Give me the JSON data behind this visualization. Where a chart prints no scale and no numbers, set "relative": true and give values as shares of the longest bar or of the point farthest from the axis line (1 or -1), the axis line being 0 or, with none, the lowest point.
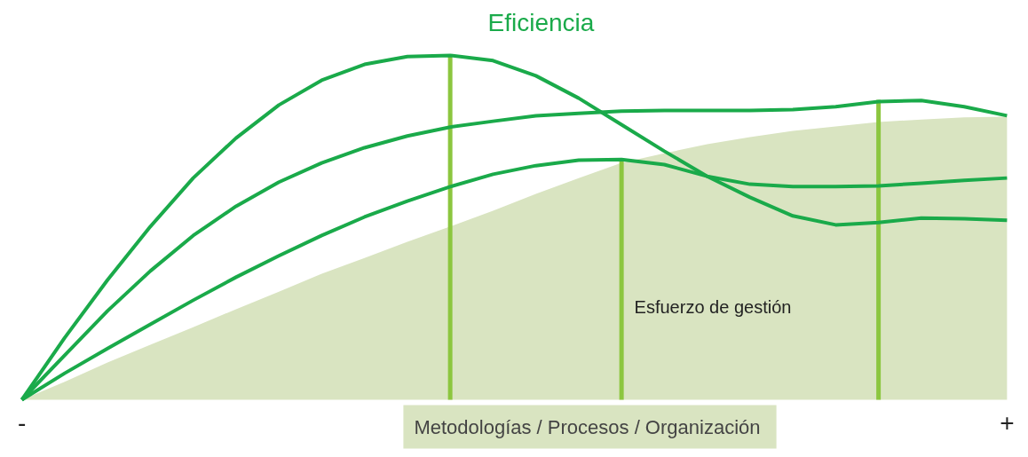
{
  "chart_data": {
    "type": "line",
    "title": "Eficiencia",
    "xlabel": "Metodologías / Procesos  / Organización",
    "relative": true,
    "grid": false,
    "marker": "none",
    "line_style": "solid",
    "categories": [
      "-",
      null,
      null,
      null,
      null,
      null,
      null,
      null,
      null,
      null,
      null,
      null,
      null,
      null,
      null,
      null,
      null,
      null,
      null,
      null,
      null,
      null,
      null,
      "+"
    ],
    "series": [
      {
        "type": "area",
        "name": "Esfuerzo de gestión",
        "color": "#d9e4c1",
        "values": [
          0,
          0.052,
          0.108,
          0.16,
          0.211,
          0.263,
          0.314,
          0.366,
          0.412,
          0.459,
          0.503,
          0.549,
          0.598,
          0.644,
          0.688,
          0.716,
          0.742,
          0.763,
          0.781,
          0.794,
          0.807,
          0.814,
          0.82,
          0.822
        ]
      },
      {
        "type": "bar",
        "color": "#8cc63f",
        "values": [
          null,
          null,
          null,
          null,
          null,
          null,
          null,
          null,
          null,
          null,
          1.0,
          null,
          null,
          null,
          0.696,
          null,
          null,
          null,
          null,
          null,
          0.871,
          null,
          null,
          null
        ]
      },
      {
        "color": "#1aaa4a",
        "values": [
          0,
          0.18,
          0.348,
          0.503,
          0.644,
          0.76,
          0.856,
          0.928,
          0.974,
          0.997,
          1.0,
          0.985,
          0.941,
          0.876,
          0.799,
          0.722,
          0.649,
          0.588,
          0.534,
          0.508,
          0.515,
          0.528,
          0.526,
          0.521
        ]
      },
      {
        "color": "#1aaa4a",
        "values": [
          0,
          0.129,
          0.258,
          0.374,
          0.477,
          0.562,
          0.632,
          0.688,
          0.732,
          0.766,
          0.792,
          0.809,
          0.825,
          0.832,
          0.838,
          0.84,
          0.84,
          0.84,
          0.843,
          0.851,
          0.866,
          0.869,
          0.851,
          0.825
        ]
      },
      {
        "color": "#1aaa4a",
        "values": [
          0,
          0.077,
          0.149,
          0.219,
          0.289,
          0.356,
          0.418,
          0.477,
          0.531,
          0.577,
          0.619,
          0.655,
          0.68,
          0.696,
          0.698,
          0.683,
          0.649,
          0.626,
          0.619,
          0.619,
          0.621,
          0.629,
          0.637,
          0.644
        ]
      }
    ]
  }
}
